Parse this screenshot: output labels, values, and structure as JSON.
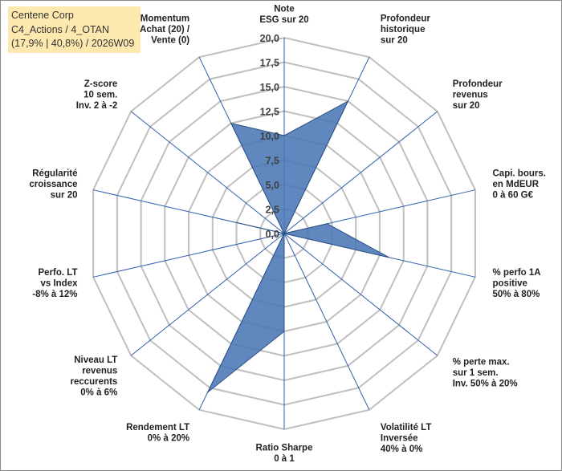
{
  "info_box": {
    "line1": "Centene Corp",
    "line2": "C4_Actions / 4_OTAN",
    "line3": "(17,9% | 40,8%) / 2026W09"
  },
  "colors": {
    "grid": "#bfbfbf",
    "spoke": "#2f5fad",
    "fill": "#4a78b6",
    "stroke": "#2c4f86",
    "info_bg": "#fde9b0"
  },
  "chart_data": {
    "type": "radar",
    "title": "",
    "rmin": 0,
    "rmax": 20,
    "ticks": [
      "0,0",
      "2,5",
      "5,0",
      "7,5",
      "10,0",
      "12,5",
      "15,0",
      "17,5",
      "20,0"
    ],
    "grid": true,
    "axes": [
      {
        "lines": [
          "Note",
          "ESG sur 20"
        ],
        "value": 10.0
      },
      {
        "lines": [
          "Profondeur",
          "historique",
          "sur 20"
        ],
        "value": 15.0
      },
      {
        "lines": [
          "Profondeur",
          "revenus",
          "sur 20"
        ],
        "value": 0.0
      },
      {
        "lines": [
          "Capi. bours.",
          "en MdEUR",
          "0 à 60 G€"
        ],
        "value": 4.5
      },
      {
        "lines": [
          "% perfo 1A",
          "positive",
          "50% à 80%"
        ],
        "value": 11.0
      },
      {
        "lines": [
          "% perte max.",
          "sur 1 sem.",
          "Inv. 50% à 20%"
        ],
        "value": 0.0
      },
      {
        "lines": [
          "Volatilité LT",
          "Inversée",
          "40% à 0%"
        ],
        "value": 0.0
      },
      {
        "lines": [
          "Ratio Sharpe",
          "0 à 1"
        ],
        "value": 10.0
      },
      {
        "lines": [
          "Rendement LT",
          "0% à 20%"
        ],
        "value": 18.0
      },
      {
        "lines": [
          "Niveau LT",
          "revenus",
          "reccurents",
          "0% à 6%"
        ],
        "value": 0.0
      },
      {
        "lines": [
          "Perfo. LT",
          "vs Index",
          "-8% à 12%"
        ],
        "value": 0.0
      },
      {
        "lines": [
          "Régularité",
          "croissance",
          "sur 20"
        ],
        "value": 5.0
      },
      {
        "lines": [
          "Z-score",
          "10 sem.",
          "Inv. 2 à -2"
        ],
        "value": 0.0
      },
      {
        "lines": [
          "Momentum",
          "Achat (20) /",
          "Vente (0)"
        ],
        "value": 12.5
      }
    ]
  }
}
